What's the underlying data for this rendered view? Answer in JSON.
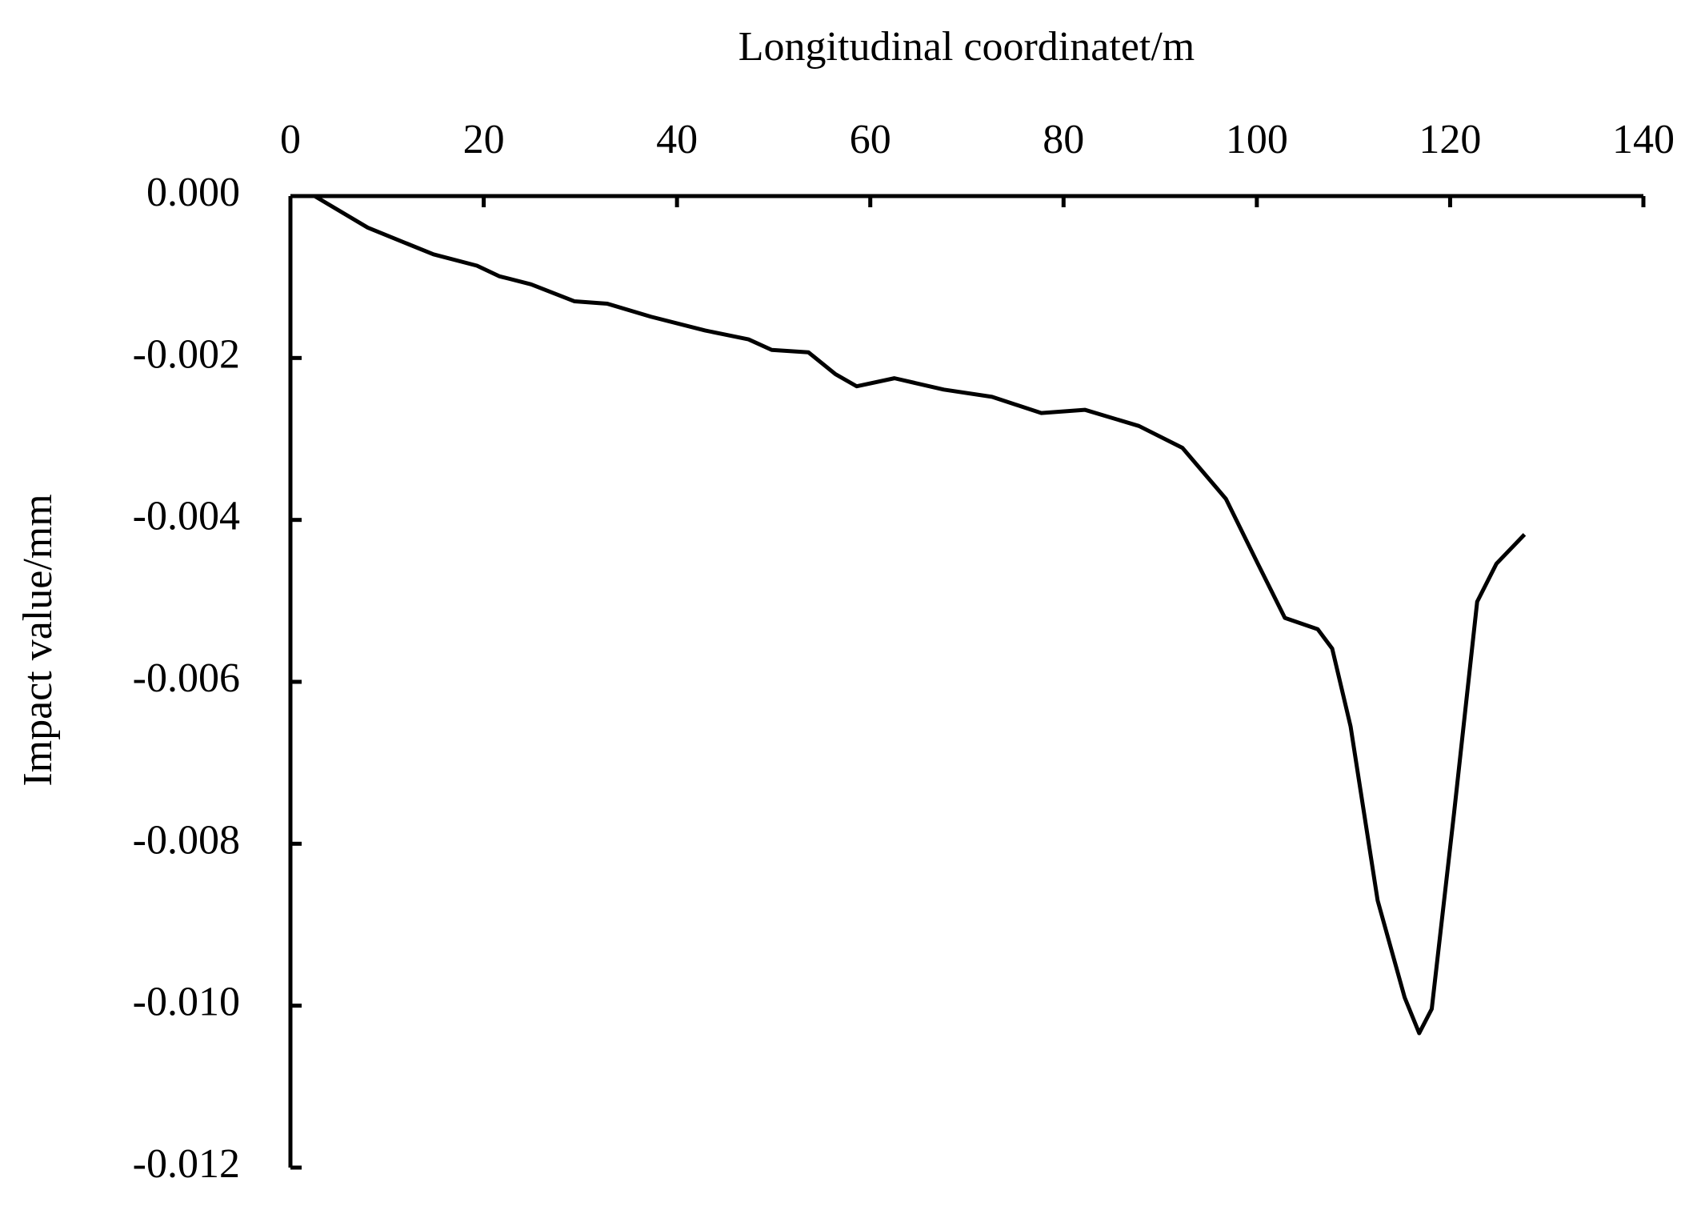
{
  "chart_data": {
    "type": "line",
    "x_axis_label": "Longitudinal coordinatet/m",
    "y_axis_label": "Impact value/mm",
    "x": [
      0,
      2.5,
      8,
      14.8,
      19.3,
      21.6,
      24.9,
      29.4,
      32.8,
      37.3,
      42.9,
      47.4,
      49.8,
      53.6,
      56.4,
      58.6,
      62.5,
      67.6,
      72.6,
      77.7,
      82.2,
      87.8,
      92.3,
      96.8,
      100.1,
      102.9,
      106.3,
      107.8,
      109.7,
      112.5,
      115.3,
      116.8,
      118.1,
      120.4,
      122.8,
      124.8,
      127.7
    ],
    "series": [
      {
        "color": "#000000",
        "values": [
          0,
          0,
          -0.00039,
          -0.00072,
          -0.00086,
          -0.00099,
          -0.00109,
          -0.0013,
          -0.00133,
          -0.00149,
          -0.00166,
          -0.00177,
          -0.0019,
          -0.00193,
          -0.0022,
          -0.00235,
          -0.00225,
          -0.00239,
          -0.00248,
          -0.00268,
          -0.00264,
          -0.00284,
          -0.00311,
          -0.00374,
          -0.00454,
          -0.00521,
          -0.00535,
          -0.00559,
          -0.00655,
          -0.0087,
          -0.0099,
          -0.01034,
          -0.01004,
          -0.00763,
          -0.00501,
          -0.00454,
          -0.00418
        ]
      }
    ],
    "xlim": [
      0,
      140
    ],
    "xticks": [
      0,
      20,
      40,
      60,
      80,
      100,
      120,
      140
    ],
    "ylim": [
      -0.012,
      0
    ],
    "yticks": [
      {
        "value": 0,
        "label": "0.000"
      },
      {
        "value": -0.002,
        "label": "-0.002"
      },
      {
        "value": -0.004,
        "label": "-0.004"
      },
      {
        "value": -0.006,
        "label": "-0.006"
      },
      {
        "value": -0.008,
        "label": "-0.008"
      },
      {
        "value": -0.01,
        "label": "-0.010"
      },
      {
        "value": -0.012,
        "label": "-0.012"
      }
    ]
  }
}
